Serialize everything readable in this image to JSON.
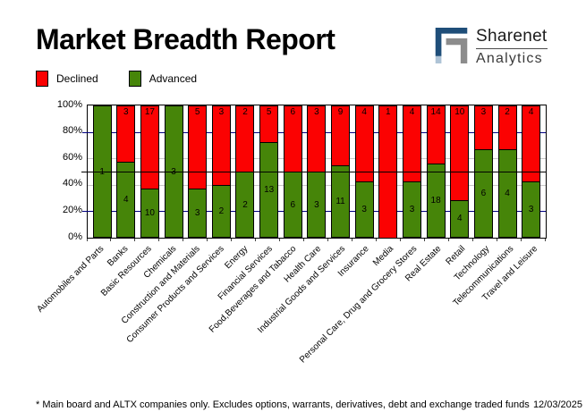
{
  "title": "Market Breadth Report",
  "logo": {
    "line1": "Sharenet",
    "line2": "Analytics",
    "colors": {
      "primary": "#1F4E79",
      "secondary": "#8C8C8C",
      "accent": "#AEC3D6"
    }
  },
  "legend": {
    "items": [
      {
        "label": "Declined",
        "color": "#FB0202"
      },
      {
        "label": "Advanced",
        "color": "#468509"
      }
    ]
  },
  "footer": {
    "note": "* Main board and ALTX companies only. Excludes options, warrants, derivatives, debt and exchange traded funds",
    "date": "12/03/2025"
  },
  "chart_data": {
    "type": "bar",
    "stacked": true,
    "normalized": "percent_of_total",
    "title": "Market Breadth Report",
    "xlabel": "",
    "ylabel": "",
    "ylim": [
      0,
      100
    ],
    "ytick_labels": [
      "100%",
      "80%",
      "60%",
      "40%",
      "20%",
      "0%"
    ],
    "legend_position": "top-left",
    "grid": true,
    "reference_line_pct": 50,
    "gridlines": [
      {
        "pct": 80,
        "color": "#000080"
      },
      {
        "pct": 60,
        "color": "#C8C8C8"
      },
      {
        "pct": 50,
        "color": "#000000"
      },
      {
        "pct": 40,
        "color": "#C8C8C8"
      },
      {
        "pct": 20,
        "color": "#000080"
      }
    ],
    "categories": [
      "Automobiles and Parts",
      "Banks",
      "Basic Resources",
      "Chemicals",
      "Construction and Materials",
      "Consumer Products and Services",
      "Energy",
      "Financial Services",
      "Food,Beverages and Tabacco",
      "Health Care",
      "Industrial Goods and Services",
      "Insurance",
      "Media",
      "Personal Care, Drug and Grocery Stores",
      "Real Estate",
      "Retail",
      "Technology",
      "Telecommunications",
      "Travel and Leisure"
    ],
    "series": [
      {
        "name": "Declined",
        "color": "#FB0202",
        "values": [
          0,
          3,
          17,
          0,
          5,
          3,
          2,
          5,
          6,
          3,
          9,
          4,
          1,
          4,
          14,
          10,
          3,
          2,
          4
        ]
      },
      {
        "name": "Advanced",
        "color": "#468509",
        "values": [
          1,
          4,
          10,
          3,
          3,
          2,
          2,
          13,
          6,
          3,
          11,
          3,
          0,
          3,
          18,
          4,
          6,
          4,
          3
        ]
      }
    ]
  }
}
